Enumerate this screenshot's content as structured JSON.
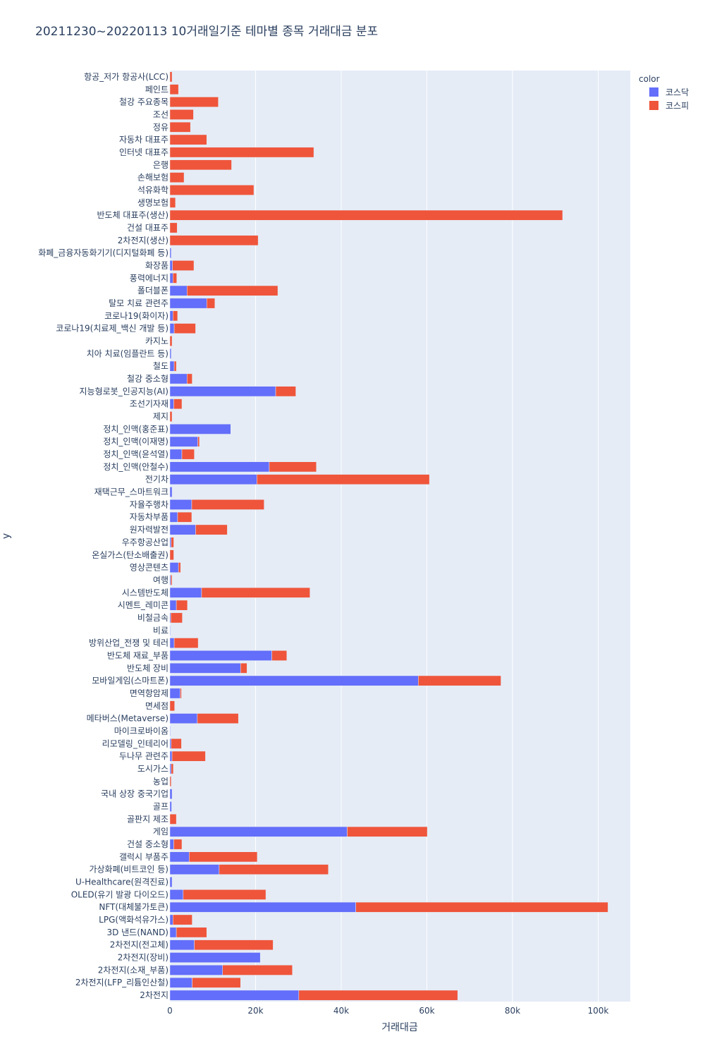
{
  "chart_data": {
    "type": "bar",
    "orientation": "horizontal",
    "barmode": "stack",
    "title": "20211230~20220113 10거래일기준 테마별 종목 거래대금 분포",
    "xlabel": "거래대금",
    "ylabel": "y",
    "xlim": [
      0,
      107500
    ],
    "xticks": [
      0,
      20000,
      40000,
      60000,
      80000,
      100000
    ],
    "xtick_labels": [
      "0",
      "20k",
      "40k",
      "60k",
      "80k",
      "100k"
    ],
    "grid": true,
    "legend": {
      "title": "color",
      "position": "top-right",
      "entries": [
        "코스닥",
        "코스피"
      ]
    },
    "colors": {
      "코스닥": "#636efa",
      "코스피": "#ef553b",
      "plot_bg": "#e5ecf6",
      "text": "#2a3f5f"
    },
    "categories": [
      "항공_저가 항공사(LCC)",
      "페인트",
      "철강 주요종목",
      "조선",
      "정유",
      "자동차 대표주",
      "인터넷 대표주",
      "은행",
      "손해보험",
      "석유화학",
      "생명보험",
      "반도체 대표주(생산)",
      "건설 대표주",
      "2차전지(생산)",
      "화폐_금융자동화기기(디지털화폐 등)",
      "화장품",
      "풍력에너지",
      "폴더블폰",
      "탈모 치료 관련주",
      "코로나19(화이자)",
      "코로나19(치료제_백신 개발 등)",
      "카지노",
      "치아 치료(임플란트 등)",
      "철도",
      "철강 중소형",
      "지능형로봇_인공지능(AI)",
      "조선기자재",
      "제지",
      "정치_인맥(홍준표)",
      "정치_인맥(이재명)",
      "정치_인맥(윤석열)",
      "정치_인맥(안철수)",
      "전기차",
      "재택근무_스마트워크",
      "자율주행차",
      "자동차부품",
      "원자력발전",
      "우주항공산업",
      "온실가스(탄소배출권)",
      "영상콘텐츠",
      "여행",
      "시스템반도체",
      "시멘트_레미콘",
      "비철금속",
      "비료",
      "방위산업_전쟁 및 테러",
      "반도체 재료_부품",
      "반도체 장비",
      "모바일게임(스마트폰)",
      "면역항암제",
      "면세점",
      "메타버스(Metaverse)",
      "마이크로바이옴",
      "리모델링_인테리어",
      "두나무 관련주",
      "도시가스",
      "농업",
      "국내 상장 중국기업",
      "골프",
      "골판지 제조",
      "게임",
      "건설 중소형",
      "갤럭시 부품주",
      "가상화폐(비트코인 등)",
      "U-Healthcare(원격진료)",
      "OLED(유기 발광 다이오드)",
      "NFT(대체불가토큰)",
      "LPG(액화석유가스)",
      "3D 낸드(NAND)",
      "2차전지(전고체)",
      "2차전지(장비)",
      "2차전지(소재_부품)",
      "2차전지(LFP_리튬인산철)",
      "2차전지"
    ],
    "series": [
      {
        "name": "코스닥",
        "values": [
          0,
          0,
          0,
          0,
          0,
          0,
          0,
          0,
          0,
          0,
          0,
          0,
          0,
          0,
          300,
          600,
          700,
          4000,
          8600,
          700,
          1000,
          0,
          300,
          1000,
          4000,
          24700,
          900,
          0,
          14200,
          6500,
          2800,
          23200,
          20300,
          500,
          5100,
          1800,
          6000,
          300,
          0,
          2000,
          200,
          7400,
          1500,
          200,
          100,
          1000,
          23800,
          16500,
          58000,
          2400,
          0,
          6400,
          100,
          300,
          500,
          300,
          0,
          500,
          400,
          0,
          41400,
          900,
          4500,
          11500,
          500,
          3100,
          43400,
          700,
          1500,
          5700,
          21100,
          12300,
          5200,
          30100
        ]
      },
      {
        "name": "코스피",
        "values": [
          500,
          2000,
          11300,
          5500,
          4800,
          8600,
          33600,
          14400,
          3300,
          19600,
          1300,
          91700,
          1700,
          20600,
          0,
          5000,
          900,
          21200,
          1900,
          1100,
          5000,
          500,
          0,
          500,
          1200,
          4700,
          1900,
          500,
          0,
          400,
          2900,
          11000,
          40300,
          0,
          16900,
          3300,
          7400,
          600,
          900,
          500,
          300,
          25300,
          2600,
          2700,
          0,
          5600,
          3500,
          1500,
          19300,
          300,
          1100,
          9600,
          0,
          2400,
          7800,
          500,
          300,
          0,
          0,
          1500,
          18700,
          1900,
          15900,
          25500,
          0,
          19300,
          58900,
          4500,
          7100,
          18400,
          0,
          16300,
          11300,
          37100
        ]
      }
    ]
  }
}
